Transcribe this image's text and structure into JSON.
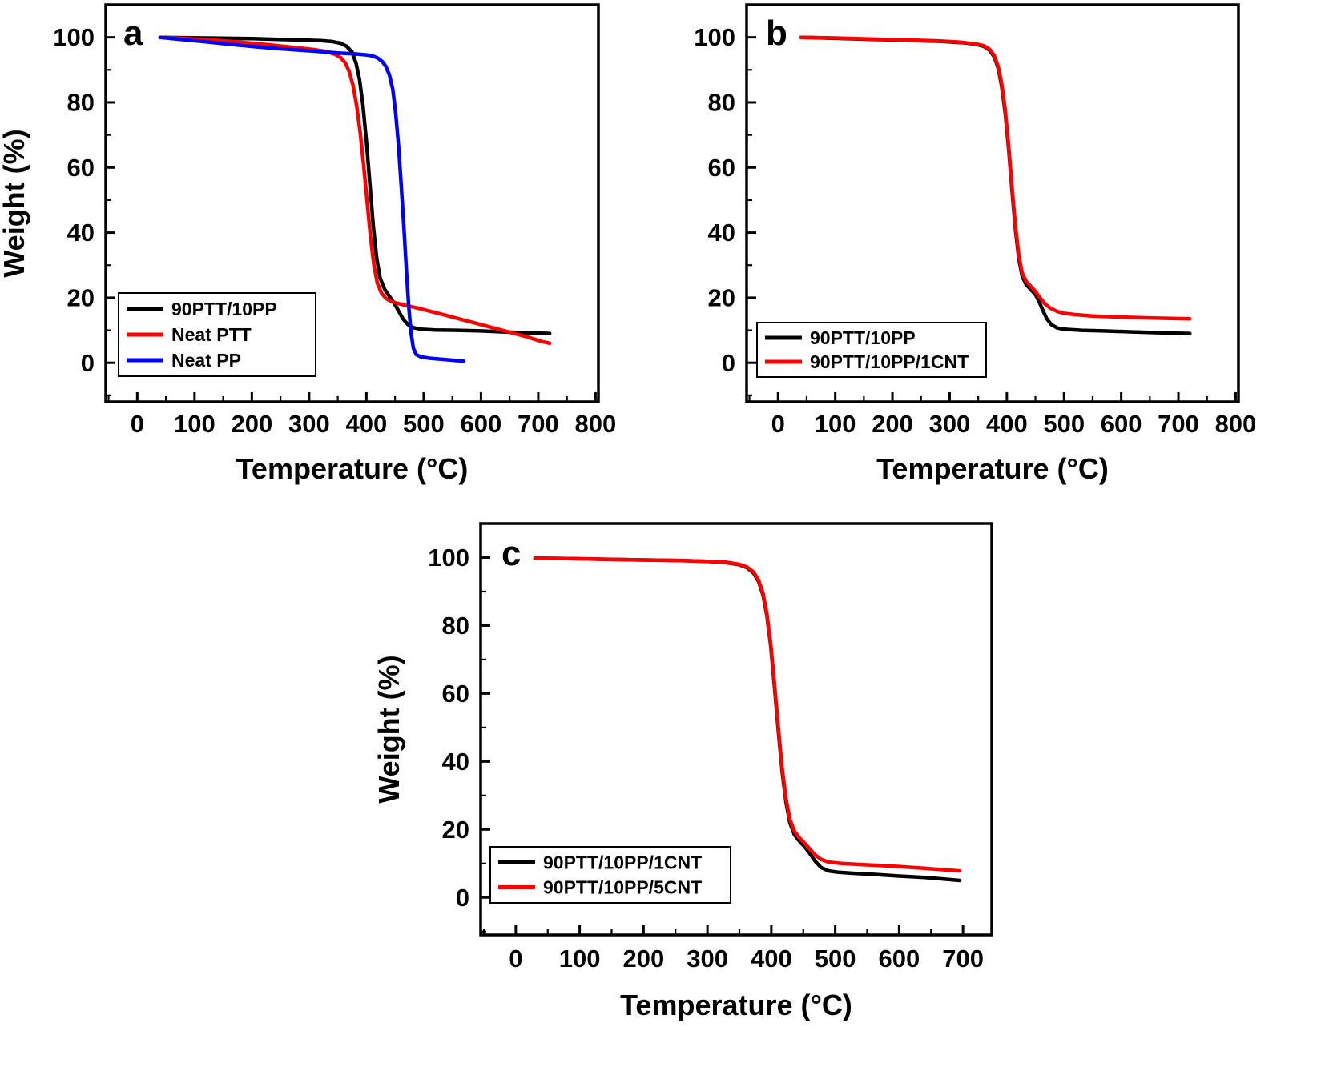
{
  "figure": {
    "background": "#ffffff",
    "axis_color": "#000000",
    "description": "TGA thermograms, three panels a b c"
  },
  "chart_data": [
    {
      "id": "a",
      "type": "line",
      "panel_label": "a",
      "xlabel": "Temperature (°C)",
      "ylabel": "Weight (%)",
      "xlim": [
        -55,
        805
      ],
      "ylim": [
        -12,
        110
      ],
      "xticks": [
        0,
        100,
        200,
        300,
        400,
        500,
        600,
        700,
        800
      ],
      "yticks": [
        0,
        20,
        40,
        60,
        80,
        100
      ],
      "grid": false,
      "legend_position": "lower-left",
      "series": [
        {
          "name": "90PTT/10PP",
          "color": "#000000",
          "points": [
            [
              40,
              100
            ],
            [
              80,
              99.9
            ],
            [
              120,
              99.8
            ],
            [
              160,
              99.7
            ],
            [
              200,
              99.6
            ],
            [
              240,
              99.4
            ],
            [
              280,
              99.2
            ],
            [
              320,
              99.0
            ],
            [
              340,
              98.7
            ],
            [
              355,
              98.2
            ],
            [
              365,
              97.3
            ],
            [
              375,
              95.5
            ],
            [
              382,
              92
            ],
            [
              388,
              87
            ],
            [
              394,
              79
            ],
            [
              400,
              68
            ],
            [
              406,
              55
            ],
            [
              412,
              42
            ],
            [
              418,
              32
            ],
            [
              424,
              26
            ],
            [
              432,
              22.5
            ],
            [
              440,
              20.5
            ],
            [
              448,
              18.5
            ],
            [
              456,
              16
            ],
            [
              464,
              13.5
            ],
            [
              472,
              11.8
            ],
            [
              482,
              10.8
            ],
            [
              495,
              10.3
            ],
            [
              520,
              10.1
            ],
            [
              560,
              10
            ],
            [
              600,
              9.8
            ],
            [
              640,
              9.5
            ],
            [
              680,
              9.2
            ],
            [
              720,
              9
            ]
          ]
        },
        {
          "name": "Neat PTT",
          "color": "#ff0000",
          "points": [
            [
              40,
              100
            ],
            [
              80,
              99.7
            ],
            [
              120,
              99.3
            ],
            [
              160,
              98.8
            ],
            [
              200,
              98.2
            ],
            [
              240,
              97.5
            ],
            [
              280,
              96.8
            ],
            [
              310,
              96.2
            ],
            [
              330,
              95.6
            ],
            [
              345,
              94.8
            ],
            [
              355,
              93.8
            ],
            [
              363,
              92.2
            ],
            [
              370,
              89.5
            ],
            [
              377,
              85
            ],
            [
              383,
              79
            ],
            [
              389,
              71
            ],
            [
              395,
              61
            ],
            [
              401,
              50
            ],
            [
              407,
              39
            ],
            [
              413,
              30
            ],
            [
              419,
              24.5
            ],
            [
              426,
              21.5
            ],
            [
              434,
              19.8
            ],
            [
              444,
              18.8
            ],
            [
              456,
              18.2
            ],
            [
              470,
              17.6
            ],
            [
              490,
              16.8
            ],
            [
              510,
              15.9
            ],
            [
              530,
              15
            ],
            [
              560,
              13.6
            ],
            [
              590,
              12.2
            ],
            [
              620,
              10.8
            ],
            [
              650,
              9.4
            ],
            [
              680,
              8
            ],
            [
              705,
              6.6
            ],
            [
              720,
              6
            ]
          ]
        },
        {
          "name": "Neat PP",
          "color": "#0000ff",
          "points": [
            [
              40,
              100
            ],
            [
              80,
              99.3
            ],
            [
              120,
              98.6
            ],
            [
              160,
              97.9
            ],
            [
              200,
              97.2
            ],
            [
              240,
              96.6
            ],
            [
              280,
              96.1
            ],
            [
              320,
              95.6
            ],
            [
              350,
              95.2
            ],
            [
              380,
              94.9
            ],
            [
              400,
              94.6
            ],
            [
              412,
              94.2
            ],
            [
              420,
              93.6
            ],
            [
              428,
              92.5
            ],
            [
              434,
              91
            ],
            [
              440,
              88.5
            ],
            [
              446,
              84
            ],
            [
              451,
              77
            ],
            [
              456,
              67
            ],
            [
              461,
              54
            ],
            [
              466,
              40
            ],
            [
              470,
              28
            ],
            [
              474,
              17
            ],
            [
              478,
              9
            ],
            [
              482,
              4.5
            ],
            [
              487,
              2.5
            ],
            [
              495,
              1.8
            ],
            [
              510,
              1.4
            ],
            [
              530,
              1.1
            ],
            [
              550,
              0.8
            ],
            [
              570,
              0.5
            ]
          ]
        }
      ]
    },
    {
      "id": "b",
      "type": "line",
      "panel_label": "b",
      "xlabel": "Temperature (°C)",
      "ylabel": "Weight (%)",
      "xlim": [
        -55,
        805
      ],
      "ylim": [
        -12,
        110
      ],
      "xticks": [
        0,
        100,
        200,
        300,
        400,
        500,
        600,
        700,
        800
      ],
      "yticks": [
        0,
        20,
        40,
        60,
        80,
        100
      ],
      "grid": false,
      "legend_position": "lower-left",
      "series": [
        {
          "name": "90PTT/10PP",
          "color": "#000000",
          "points": [
            [
              40,
              100
            ],
            [
              100,
              99.7
            ],
            [
              160,
              99.4
            ],
            [
              220,
              99.1
            ],
            [
              280,
              98.8
            ],
            [
              320,
              98.4
            ],
            [
              345,
              97.9
            ],
            [
              360,
              97.2
            ],
            [
              370,
              96
            ],
            [
              378,
              94
            ],
            [
              385,
              90.5
            ],
            [
              391,
              85
            ],
            [
              397,
              77
            ],
            [
              403,
              66
            ],
            [
              409,
              53
            ],
            [
              415,
              41
            ],
            [
              421,
              32
            ],
            [
              427,
              26.5
            ],
            [
              434,
              24
            ],
            [
              442,
              22.5
            ],
            [
              450,
              21
            ],
            [
              456,
              19
            ],
            [
              462,
              16.5
            ],
            [
              470,
              13.5
            ],
            [
              478,
              11.7
            ],
            [
              488,
              10.7
            ],
            [
              500,
              10.3
            ],
            [
              530,
              10
            ],
            [
              570,
              9.8
            ],
            [
              620,
              9.5
            ],
            [
              670,
              9.2
            ],
            [
              720,
              9
            ]
          ]
        },
        {
          "name": "90PTT/10PP/1CNT",
          "color": "#ff0000",
          "points": [
            [
              40,
              100
            ],
            [
              100,
              99.8
            ],
            [
              160,
              99.5
            ],
            [
              220,
              99.2
            ],
            [
              280,
              98.9
            ],
            [
              320,
              98.5
            ],
            [
              345,
              98
            ],
            [
              360,
              97.4
            ],
            [
              370,
              96.3
            ],
            [
              378,
              94.4
            ],
            [
              385,
              91
            ],
            [
              391,
              85.8
            ],
            [
              397,
              78
            ],
            [
              403,
              67
            ],
            [
              409,
              54
            ],
            [
              415,
              42
            ],
            [
              421,
              33
            ],
            [
              427,
              27.5
            ],
            [
              434,
              25
            ],
            [
              442,
              23.5
            ],
            [
              450,
              22
            ],
            [
              458,
              20
            ],
            [
              466,
              18.2
            ],
            [
              476,
              16.8
            ],
            [
              488,
              15.8
            ],
            [
              500,
              15.2
            ],
            [
              520,
              14.8
            ],
            [
              550,
              14.4
            ],
            [
              590,
              14.1
            ],
            [
              630,
              13.9
            ],
            [
              670,
              13.7
            ],
            [
              720,
              13.5
            ]
          ]
        }
      ]
    },
    {
      "id": "c",
      "type": "line",
      "panel_label": "c",
      "xlabel": "Temperature (°C)",
      "ylabel": "Weight (%)",
      "xlim": [
        -55,
        745
      ],
      "ylim": [
        -11,
        110
      ],
      "xticks": [
        0,
        100,
        200,
        300,
        400,
        500,
        600,
        700
      ],
      "yticks": [
        0,
        20,
        40,
        60,
        80,
        100
      ],
      "grid": false,
      "legend_position": "lower-left",
      "series": [
        {
          "name": "90PTT/10PP/1CNT",
          "color": "#000000",
          "points": [
            [
              30,
              99.8
            ],
            [
              80,
              99.7
            ],
            [
              140,
              99.5
            ],
            [
              200,
              99.3
            ],
            [
              260,
              99.1
            ],
            [
              300,
              98.9
            ],
            [
              330,
              98.5
            ],
            [
              350,
              97.9
            ],
            [
              362,
              97
            ],
            [
              372,
              95.5
            ],
            [
              380,
              93
            ],
            [
              387,
              89
            ],
            [
              393,
              83
            ],
            [
              399,
              74
            ],
            [
              405,
              62
            ],
            [
              411,
              49
            ],
            [
              417,
              37
            ],
            [
              423,
              28
            ],
            [
              429,
              22
            ],
            [
              436,
              18.5
            ],
            [
              444,
              16.5
            ],
            [
              452,
              15
            ],
            [
              460,
              13
            ],
            [
              468,
              10.8
            ],
            [
              478,
              8.8
            ],
            [
              490,
              7.8
            ],
            [
              505,
              7.4
            ],
            [
              530,
              7.1
            ],
            [
              560,
              6.8
            ],
            [
              600,
              6.3
            ],
            [
              640,
              5.9
            ],
            [
              670,
              5.4
            ],
            [
              695,
              5
            ]
          ]
        },
        {
          "name": "90PTT/10PP/5CNT",
          "color": "#ff0000",
          "points": [
            [
              30,
              99.8
            ],
            [
              80,
              99.7
            ],
            [
              140,
              99.5
            ],
            [
              200,
              99.3
            ],
            [
              260,
              99.1
            ],
            [
              300,
              98.9
            ],
            [
              330,
              98.6
            ],
            [
              350,
              98
            ],
            [
              362,
              97.2
            ],
            [
              372,
              95.8
            ],
            [
              380,
              93.4
            ],
            [
              387,
              89.5
            ],
            [
              393,
              83.5
            ],
            [
              399,
              74.5
            ],
            [
              405,
              63
            ],
            [
              411,
              50
            ],
            [
              417,
              38
            ],
            [
              423,
              29
            ],
            [
              429,
              23
            ],
            [
              436,
              19.5
            ],
            [
              444,
              17.5
            ],
            [
              452,
              16
            ],
            [
              460,
              14.3
            ],
            [
              468,
              12.6
            ],
            [
              478,
              11.2
            ],
            [
              490,
              10.4
            ],
            [
              510,
              10
            ],
            [
              540,
              9.7
            ],
            [
              570,
              9.4
            ],
            [
              600,
              9.1
            ],
            [
              630,
              8.7
            ],
            [
              660,
              8.3
            ],
            [
              695,
              7.8
            ]
          ]
        }
      ]
    }
  ]
}
